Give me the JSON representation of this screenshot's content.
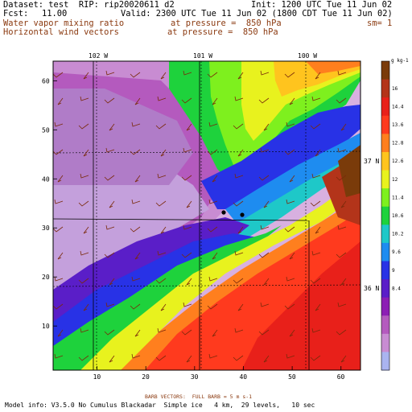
{
  "header": {
    "dataset_line": "Dataset: test  RIP: rip20020611 d2",
    "init_line": "Init: 1200 UTC Tue 11 Jun 02",
    "fcst_label": "Fcst:",
    "fcst_value": "11.00",
    "valid_line": "Valid: 2300 UTC Tue 11 Jun 02 (1800 CDT Tue 11 Jun 02)",
    "field1_name": "Water vapor mixing ratio",
    "field1_level": "at pressure =  850 hPa",
    "field1_extra": "sm= 1",
    "field2_name": "Horizontal wind vectors",
    "field2_level": "at pressure =  850 hPa"
  },
  "map": {
    "lon_labels": [
      "102 W",
      "101 W",
      "100 W"
    ],
    "lat_labels": [
      "37 N",
      "36 N"
    ],
    "x_ticks": [
      "10",
      "20",
      "30",
      "40",
      "50",
      "60"
    ],
    "y_ticks": [
      "10",
      "20",
      "30",
      "40",
      "50",
      "60"
    ],
    "x_range": [
      1,
      64
    ],
    "y_range": [
      1,
      64
    ]
  },
  "colorbar": {
    "unit_label": "g kg-1",
    "labels": [
      "16",
      "14.4",
      "13.6",
      "12.8",
      "12.6",
      "12",
      "11.4",
      "10.6",
      "10.2",
      "9.6",
      "9",
      "8.4"
    ],
    "colors": [
      "#7a3b0a",
      "#b3341a",
      "#e8201a",
      "#ff3a1e",
      "#ff7f1e",
      "#ffc41e",
      "#e8f21e",
      "#7ef01e",
      "#1ed23c",
      "#1ec8c8",
      "#1e8cf0",
      "#2832e6",
      "#5a1ec8",
      "#8c1eb4",
      "#b45abe",
      "#c88cd2",
      "#aab4f0"
    ]
  },
  "footer": {
    "barb_label": "BARB VECTORS:  FULL BARB = 5 m s-1",
    "model_info": "Model info: V3.5.0 No Cumulus Blackadar  Simple ice   4 km,  29 levels,   10 sec"
  }
}
